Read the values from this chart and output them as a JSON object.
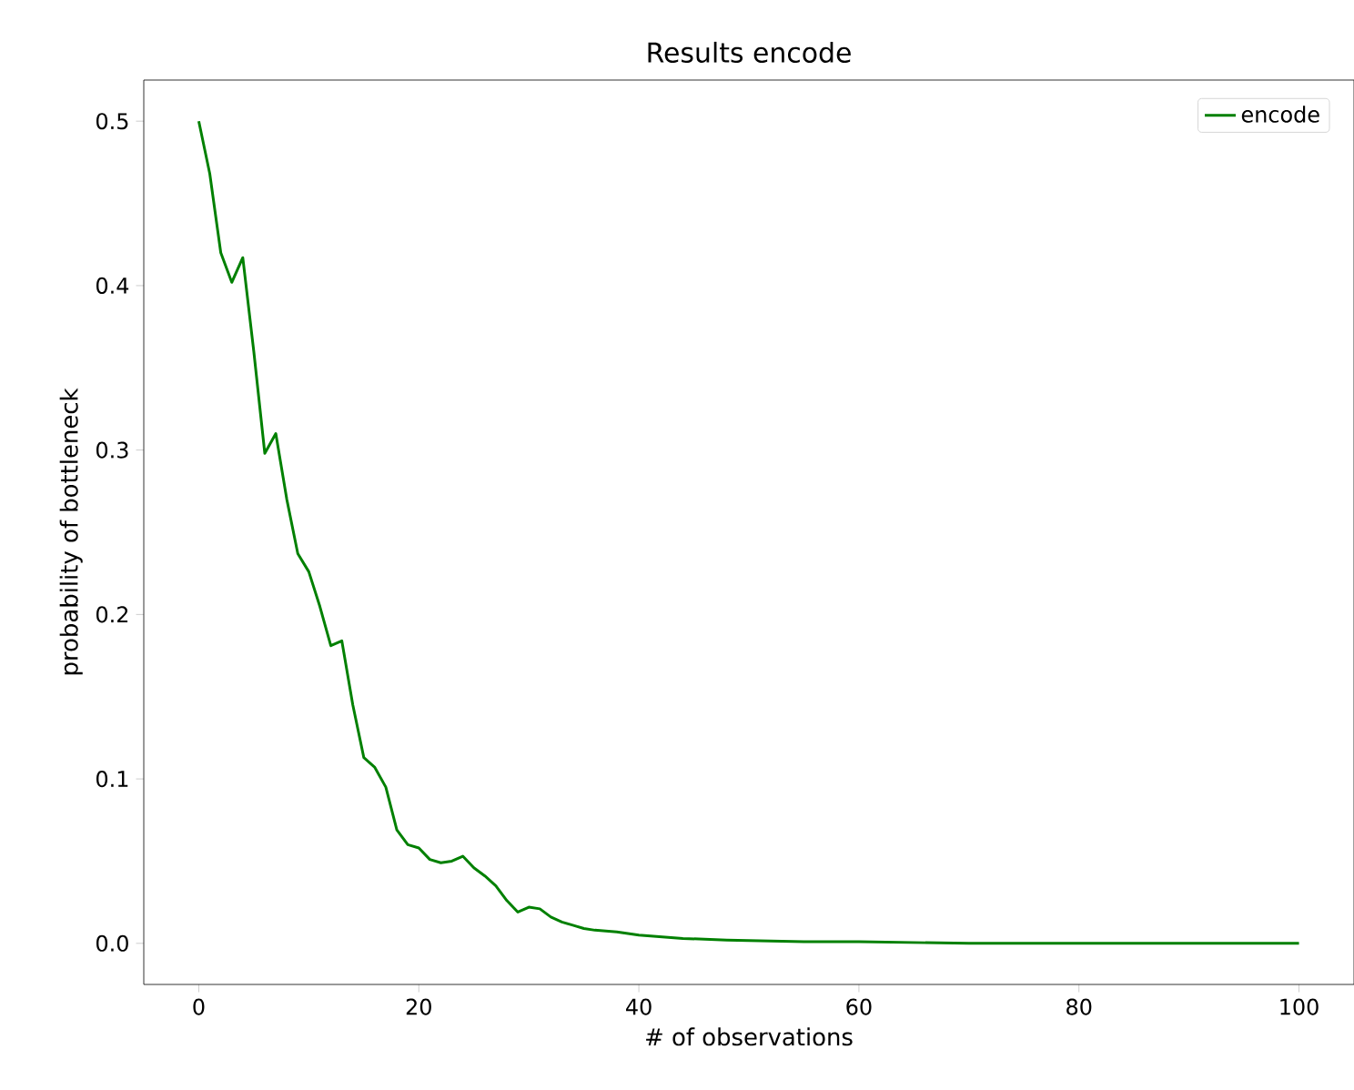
{
  "chart_data": {
    "type": "line",
    "title": "Results encode",
    "xlabel": "# of observations",
    "ylabel": "probability of bottleneck",
    "xlim": [
      -5,
      105
    ],
    "ylim": [
      -0.025,
      0.525
    ],
    "xticks": [
      0,
      20,
      40,
      60,
      80,
      100
    ],
    "yticks": [
      {
        "value": 0,
        "label": "0.0"
      },
      {
        "value": 0.1,
        "label": "0.1"
      },
      {
        "value": 0.2,
        "label": "0.2"
      },
      {
        "value": 0.3,
        "label": "0.3"
      },
      {
        "value": 0.4,
        "label": "0.4"
      },
      {
        "value": 0.5,
        "label": "0.5"
      }
    ],
    "legend": "top right",
    "grid": false,
    "series": [
      {
        "name": "encode",
        "color": "#008000",
        "x": [
          0,
          1,
          2,
          3,
          4,
          5,
          6,
          7,
          8,
          9,
          10,
          11,
          12,
          13,
          14,
          15,
          16,
          17,
          18,
          19,
          20,
          21,
          22,
          23,
          24,
          25,
          26,
          27,
          28,
          29,
          30,
          31,
          32,
          33,
          34,
          35,
          36,
          38,
          40,
          44,
          48,
          55,
          60,
          70,
          80,
          100
        ],
        "values": [
          0.5,
          0.468,
          0.42,
          0.402,
          0.417,
          0.36,
          0.298,
          0.31,
          0.27,
          0.237,
          0.226,
          0.205,
          0.181,
          0.184,
          0.145,
          0.113,
          0.107,
          0.095,
          0.069,
          0.06,
          0.058,
          0.051,
          0.049,
          0.05,
          0.053,
          0.046,
          0.041,
          0.035,
          0.026,
          0.019,
          0.022,
          0.021,
          0.016,
          0.013,
          0.011,
          0.009,
          0.008,
          0.007,
          0.005,
          0.003,
          0.002,
          0.001,
          0.001,
          0,
          0,
          0
        ]
      }
    ]
  }
}
